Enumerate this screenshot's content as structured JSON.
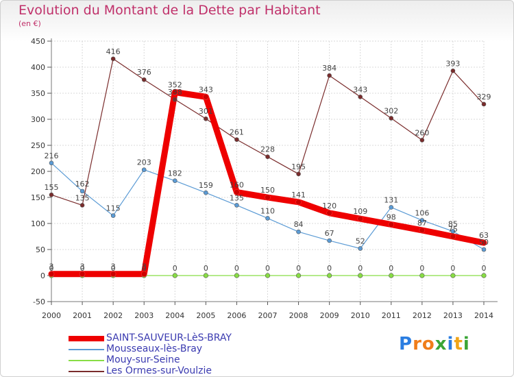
{
  "logo": {
    "text": "Proxiti",
    "letter_colors": [
      "#2a7de1",
      "#f07d1a",
      "#f07d1a",
      "#3aa536",
      "#2a7de1",
      "#f0a51a",
      "#3aa536"
    ]
  },
  "chart_data": {
    "type": "line",
    "title": "Evolution du Montant de la Dette par Habitant",
    "subtitle": "(en €)",
    "xlabel": "",
    "ylabel": "",
    "ylim": [
      -50,
      450
    ],
    "yticks": [
      -50,
      0,
      50,
      100,
      150,
      200,
      250,
      300,
      350,
      400,
      450
    ],
    "grid": true,
    "legend_position": "bottom-left",
    "x": [
      "2000",
      "2001",
      "2002",
      "2003",
      "2004",
      "2005",
      "2006",
      "2007",
      "2008",
      "2009",
      "2010",
      "2011",
      "2012",
      "2013",
      "2014"
    ],
    "series": [
      {
        "name": "SAINT-SAUVEUR-LèS-BRAY",
        "color": "#ee0000",
        "values": [
          3,
          3,
          3,
          3,
          352,
          343,
          160,
          150,
          141,
          120,
          109,
          98,
          87,
          75,
          63
        ]
      },
      {
        "name": "Mousseaux-lès-Bray",
        "color": "#5b9bd5",
        "values": [
          216,
          162,
          115,
          203,
          182,
          159,
          135,
          110,
          84,
          67,
          52,
          131,
          106,
          85,
          50
        ]
      },
      {
        "name": "Mouy-sur-Seine",
        "color": "#88dd44",
        "values": [
          0,
          0,
          0,
          0,
          0,
          0,
          0,
          0,
          0,
          0,
          0,
          0,
          0,
          0,
          0
        ]
      },
      {
        "name": "Les Ormes-sur-Voulzie",
        "color": "#7a2c2c",
        "values": [
          155,
          135,
          416,
          376,
          338,
          301,
          261,
          228,
          195,
          384,
          343,
          302,
          260,
          393,
          329
        ]
      }
    ]
  }
}
